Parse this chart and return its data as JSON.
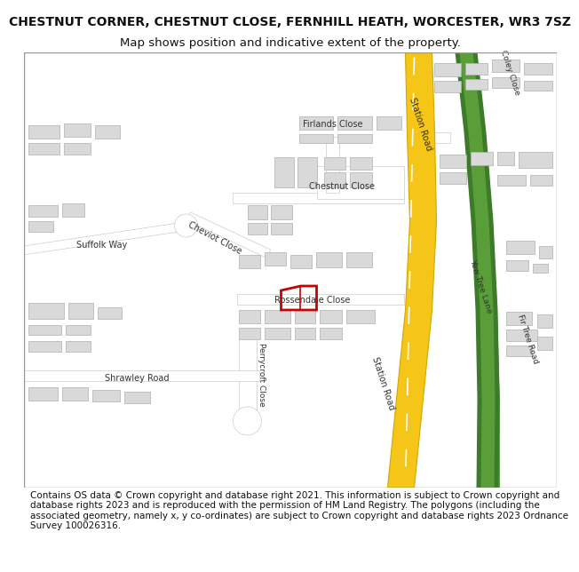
{
  "title_line1": "CHESTNUT CORNER, CHESTNUT CLOSE, FERNHILL HEATH, WORCESTER, WR3 7SZ",
  "title_line2": "Map shows position and indicative extent of the property.",
  "footer_text": "Contains OS data © Crown copyright and database right 2021. This information is subject to Crown copyright and database rights 2023 and is reproduced with the permission of HM Land Registry. The polygons (including the associated geometry, namely x, y co-ordinates) are subject to Crown copyright and database rights 2023 Ordnance Survey 100026316.",
  "map_bg": "#f5f4f1",
  "road_yellow": "#f5c518",
  "road_white": "#ffffff",
  "road_outline": "#cccccc",
  "building_fill": "#d9d9d9",
  "building_outline": "#b0b0b0",
  "green_fill": "#5a9e3a",
  "green_dark": "#3d7a2a",
  "plot_color": "#cc0000",
  "text_color": "#333333",
  "title_fontsize": 10,
  "subtitle_fontsize": 9.5,
  "footer_fontsize": 7.5,
  "road_label_fontsize": 7,
  "road_label_small_fontsize": 6.5
}
